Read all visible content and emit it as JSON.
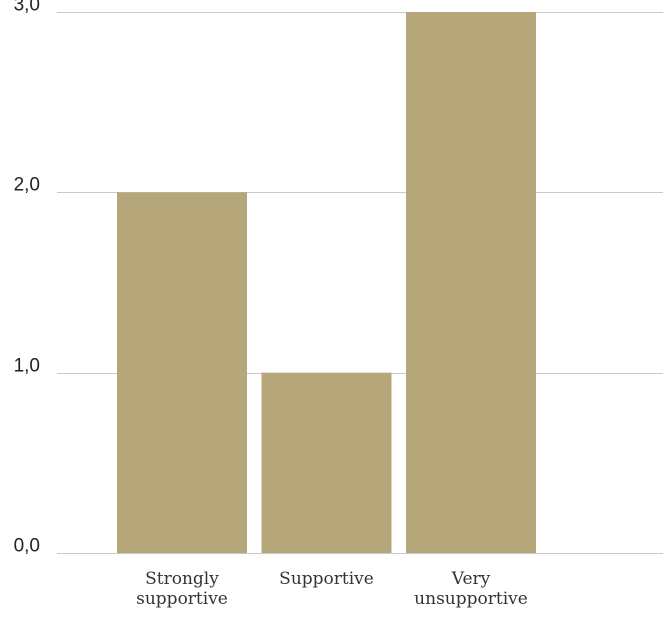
{
  "chart_data": {
    "type": "bar",
    "categories": [
      [
        "Strongly",
        "supportive"
      ],
      [
        "Supportive"
      ],
      [
        "Very",
        "unsupportive"
      ]
    ],
    "values": [
      2,
      1,
      3
    ],
    "ylim": [
      0,
      3
    ],
    "y_ticks": [
      {
        "value": 0,
        "label": "0,0"
      },
      {
        "value": 1,
        "label": "1,0"
      },
      {
        "value": 2,
        "label": "2,0"
      },
      {
        "value": 3,
        "label": "3,0"
      }
    ],
    "grid": true,
    "legend": "none",
    "bar_color": "#b6a77b",
    "grid_color": "#c9c9c9"
  }
}
